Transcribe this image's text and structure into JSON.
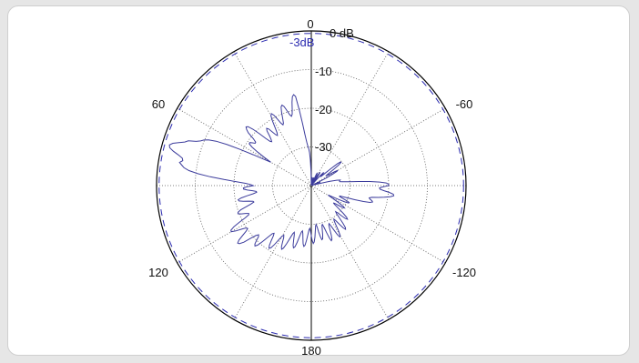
{
  "chart_data": {
    "type": "polar-line",
    "angular_unit": "degrees",
    "angular_zero": "top",
    "angular_direction": "counterclockwise",
    "angle_labels": [
      "0",
      "60",
      "-60",
      "120",
      "-120",
      "180"
    ],
    "radial_unit": "dB",
    "radial_range_db": [
      -40,
      0
    ],
    "radial_tick_labels": [
      "0 dB",
      "-10",
      "-20",
      "-30"
    ],
    "reference_circle": {
      "label": "-3dB",
      "value_db": -3,
      "style": "dashed"
    },
    "grid": true,
    "series": [
      {
        "theta_deg": [
          0,
          10,
          20,
          30,
          40,
          50,
          60,
          70,
          80,
          90,
          100,
          110,
          120,
          130,
          140,
          150,
          160,
          170,
          180,
          -170,
          -160,
          -150,
          -140,
          -130,
          -120,
          -110,
          -100,
          -90,
          -80,
          -70,
          -60,
          -50,
          -40,
          -30,
          -20,
          -10
        ],
        "gain_db": [
          -40,
          -18,
          -20,
          -21,
          -24,
          -18,
          -26,
          -4,
          -4,
          -25,
          -23,
          -22,
          -18,
          -18,
          -22,
          -23,
          -25,
          -26,
          -27,
          -28,
          -27,
          -27,
          -28,
          -30,
          -33,
          -30,
          -21,
          -20,
          -34,
          -40,
          -34,
          -32,
          -40,
          -37,
          -40,
          -40
        ]
      }
    ],
    "colors": {
      "pattern": "#3c3c9c",
      "outer_circle": "#000000",
      "grid": "#555555",
      "reference": "#2b2bb0"
    }
  }
}
